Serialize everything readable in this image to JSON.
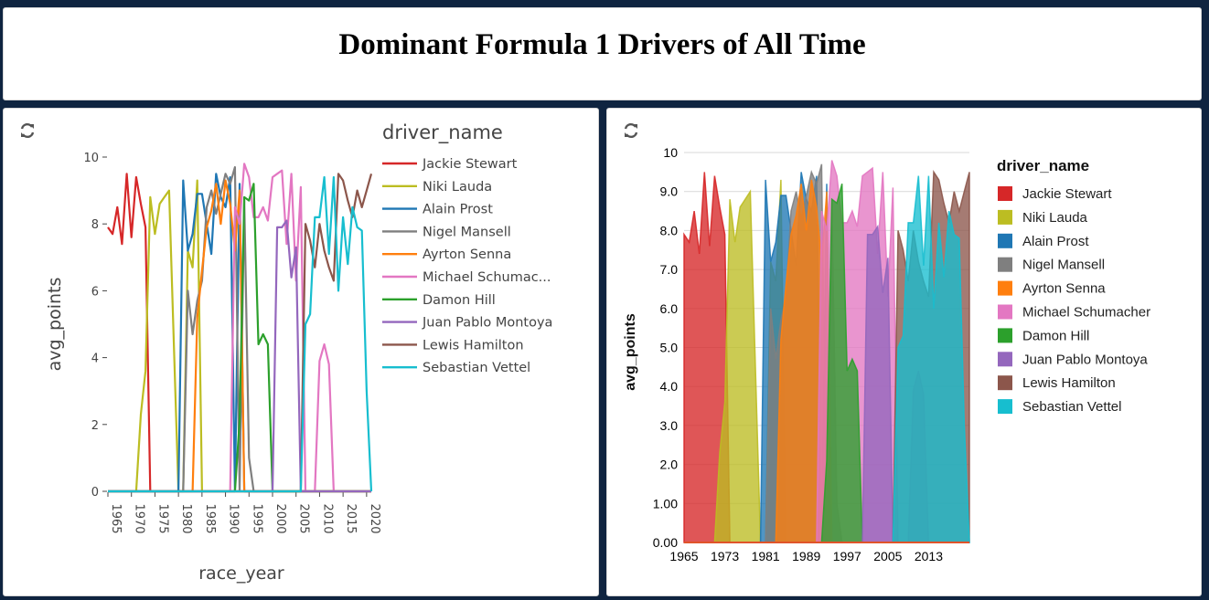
{
  "page": {
    "title": "Dominant Formula 1 Drivers of All Time"
  },
  "drivers": [
    {
      "name": "Jackie Stewart",
      "short": "Jackie Stewart",
      "color": "#d62728",
      "points": [
        [
          1965,
          7.9
        ],
        [
          1966,
          7.7
        ],
        [
          1967,
          8.5
        ],
        [
          1968,
          7.4
        ],
        [
          1969,
          9.5
        ],
        [
          1970,
          7.6
        ],
        [
          1971,
          9.4
        ],
        [
          1972,
          8.6
        ],
        [
          1973,
          7.9
        ],
        [
          1974,
          0
        ]
      ]
    },
    {
      "name": "Niki Lauda",
      "short": "Niki Lauda",
      "color": "#bcbd22",
      "points": [
        [
          1971,
          0
        ],
        [
          1972,
          2.3
        ],
        [
          1973,
          3.6
        ],
        [
          1974,
          8.8
        ],
        [
          1975,
          7.7
        ],
        [
          1976,
          8.6
        ],
        [
          1977,
          8.8
        ],
        [
          1978,
          9.0
        ],
        [
          1979,
          4.5
        ],
        [
          1980,
          0
        ],
        [
          1981,
          0
        ],
        [
          1982,
          7.2
        ],
        [
          1983,
          6.7
        ],
        [
          1984,
          9.3
        ],
        [
          1985,
          0
        ]
      ]
    },
    {
      "name": "Alain Prost",
      "short": "Alain Prost",
      "color": "#1f77b4",
      "points": [
        [
          1979,
          0
        ],
        [
          1980,
          0
        ],
        [
          1981,
          9.3
        ],
        [
          1982,
          7.2
        ],
        [
          1983,
          7.7
        ],
        [
          1984,
          8.9
        ],
        [
          1985,
          8.9
        ],
        [
          1986,
          8.0
        ],
        [
          1987,
          7.1
        ],
        [
          1988,
          9.5
        ],
        [
          1989,
          8.8
        ],
        [
          1990,
          8.5
        ],
        [
          1991,
          9.4
        ],
        [
          1992,
          0
        ],
        [
          1993,
          9.2
        ],
        [
          1994,
          0
        ]
      ]
    },
    {
      "name": "Nigel Mansell",
      "short": "Nigel Mansell",
      "color": "#7f7f7f",
      "points": [
        [
          1980,
          0
        ],
        [
          1981,
          0
        ],
        [
          1982,
          6.0
        ],
        [
          1983,
          4.7
        ],
        [
          1984,
          5.7
        ],
        [
          1985,
          6.3
        ],
        [
          1986,
          8.5
        ],
        [
          1987,
          9.0
        ],
        [
          1988,
          8.3
        ],
        [
          1989,
          8.9
        ],
        [
          1990,
          9.5
        ],
        [
          1991,
          9.2
        ],
        [
          1992,
          9.7
        ],
        [
          1993,
          0
        ],
        [
          1994,
          8.7
        ],
        [
          1995,
          1.0
        ],
        [
          1996,
          0
        ]
      ]
    },
    {
      "name": "Ayrton Senna",
      "short": "Ayrton Senna",
      "color": "#ff7f0e",
      "points": [
        [
          1983,
          0
        ],
        [
          1984,
          5.2
        ],
        [
          1985,
          6.6
        ],
        [
          1986,
          7.9
        ],
        [
          1987,
          8.4
        ],
        [
          1988,
          9.2
        ],
        [
          1989,
          8.0
        ],
        [
          1990,
          9.3
        ],
        [
          1991,
          8.6
        ],
        [
          1992,
          7.2
        ],
        [
          1993,
          9.0
        ],
        [
          1994,
          0
        ]
      ]
    },
    {
      "name": "Michael Schumacher",
      "short": "Michael Schumac...",
      "color": "#e377c2",
      "points": [
        [
          1990,
          0
        ],
        [
          1991,
          0
        ],
        [
          1992,
          8.5
        ],
        [
          1993,
          8.0
        ],
        [
          1994,
          9.8
        ],
        [
          1995,
          9.4
        ],
        [
          1996,
          8.2
        ],
        [
          1997,
          8.2
        ],
        [
          1998,
          8.5
        ],
        [
          1999,
          8.1
        ],
        [
          2000,
          9.4
        ],
        [
          2001,
          9.5
        ],
        [
          2002,
          9.6
        ],
        [
          2003,
          7.4
        ],
        [
          2004,
          9.5
        ],
        [
          2005,
          6.3
        ],
        [
          2006,
          9.1
        ],
        [
          2007,
          0
        ],
        [
          2008,
          0
        ],
        [
          2009,
          0
        ],
        [
          2010,
          3.9
        ],
        [
          2011,
          4.4
        ],
        [
          2012,
          3.8
        ],
        [
          2013,
          0
        ]
      ]
    },
    {
      "name": "Damon Hill",
      "short": "Damon Hill",
      "color": "#2ca02c",
      "points": [
        [
          1992,
          0
        ],
        [
          1993,
          2.1
        ],
        [
          1994,
          8.8
        ],
        [
          1995,
          8.7
        ],
        [
          1996,
          9.2
        ],
        [
          1997,
          4.4
        ],
        [
          1998,
          4.7
        ],
        [
          1999,
          4.4
        ],
        [
          2000,
          0
        ]
      ]
    },
    {
      "name": "Juan Pablo Montoya",
      "short": "Juan Pablo Montoya",
      "color": "#9467bd",
      "points": [
        [
          2000,
          0
        ],
        [
          2001,
          7.9
        ],
        [
          2002,
          7.9
        ],
        [
          2003,
          8.1
        ],
        [
          2004,
          6.4
        ],
        [
          2005,
          7.3
        ],
        [
          2006,
          0
        ]
      ]
    },
    {
      "name": "Lewis Hamilton",
      "short": "Lewis Hamilton",
      "color": "#8c564b",
      "points": [
        [
          2006,
          0
        ],
        [
          2007,
          8.0
        ],
        [
          2008,
          7.5
        ],
        [
          2009,
          6.7
        ],
        [
          2010,
          8.0
        ],
        [
          2011,
          7.2
        ],
        [
          2012,
          6.7
        ],
        [
          2013,
          6.3
        ],
        [
          2014,
          9.5
        ],
        [
          2015,
          9.3
        ],
        [
          2016,
          8.7
        ],
        [
          2017,
          8.2
        ],
        [
          2018,
          9.0
        ],
        [
          2019,
          8.5
        ],
        [
          2020,
          9.0
        ],
        [
          2021,
          9.5
        ]
      ]
    },
    {
      "name": "Sebastian Vettel",
      "short": "Sebastian Vettel",
      "color": "#17becf",
      "points": [
        [
          2006,
          0
        ],
        [
          2007,
          5.0
        ],
        [
          2008,
          5.3
        ],
        [
          2009,
          8.2
        ],
        [
          2010,
          8.2
        ],
        [
          2011,
          9.4
        ],
        [
          2012,
          7.1
        ],
        [
          2013,
          9.4
        ],
        [
          2014,
          6.0
        ],
        [
          2015,
          8.2
        ],
        [
          2016,
          6.8
        ],
        [
          2017,
          8.5
        ],
        [
          2018,
          7.9
        ],
        [
          2019,
          7.8
        ],
        [
          2020,
          3.0
        ],
        [
          2021,
          0
        ]
      ]
    }
  ],
  "chart_data": [
    {
      "type": "line",
      "xlabel": "race_year",
      "ylabel": "avg_points",
      "legend_title": "driver_name",
      "xlim": [
        1965,
        2021
      ],
      "ylim": [
        0,
        10
      ],
      "xticks": [
        "1965",
        "1970",
        "1975",
        "1980",
        "1985",
        "1990",
        "1995",
        "2000",
        "2005",
        "2010",
        "2015",
        "2020"
      ],
      "yticks": [
        "0",
        "2",
        "4",
        "6",
        "8",
        "10"
      ],
      "legend_position": "right",
      "grid": false
    },
    {
      "type": "area",
      "xlabel": "",
      "ylabel": "avg_points",
      "legend_title": "driver_name",
      "xlim": [
        1965,
        2021
      ],
      "ylim": [
        0,
        10
      ],
      "xticks": [
        "1965",
        "1973",
        "1981",
        "1989",
        "1997",
        "2005",
        "2013"
      ],
      "yticks": [
        "0.00",
        "1.00",
        "2.0",
        "3.0",
        "4.0",
        "5.0",
        "6.0",
        "7.0",
        "8.0",
        "9.0",
        "10"
      ],
      "legend_position": "right",
      "grid": true
    }
  ]
}
